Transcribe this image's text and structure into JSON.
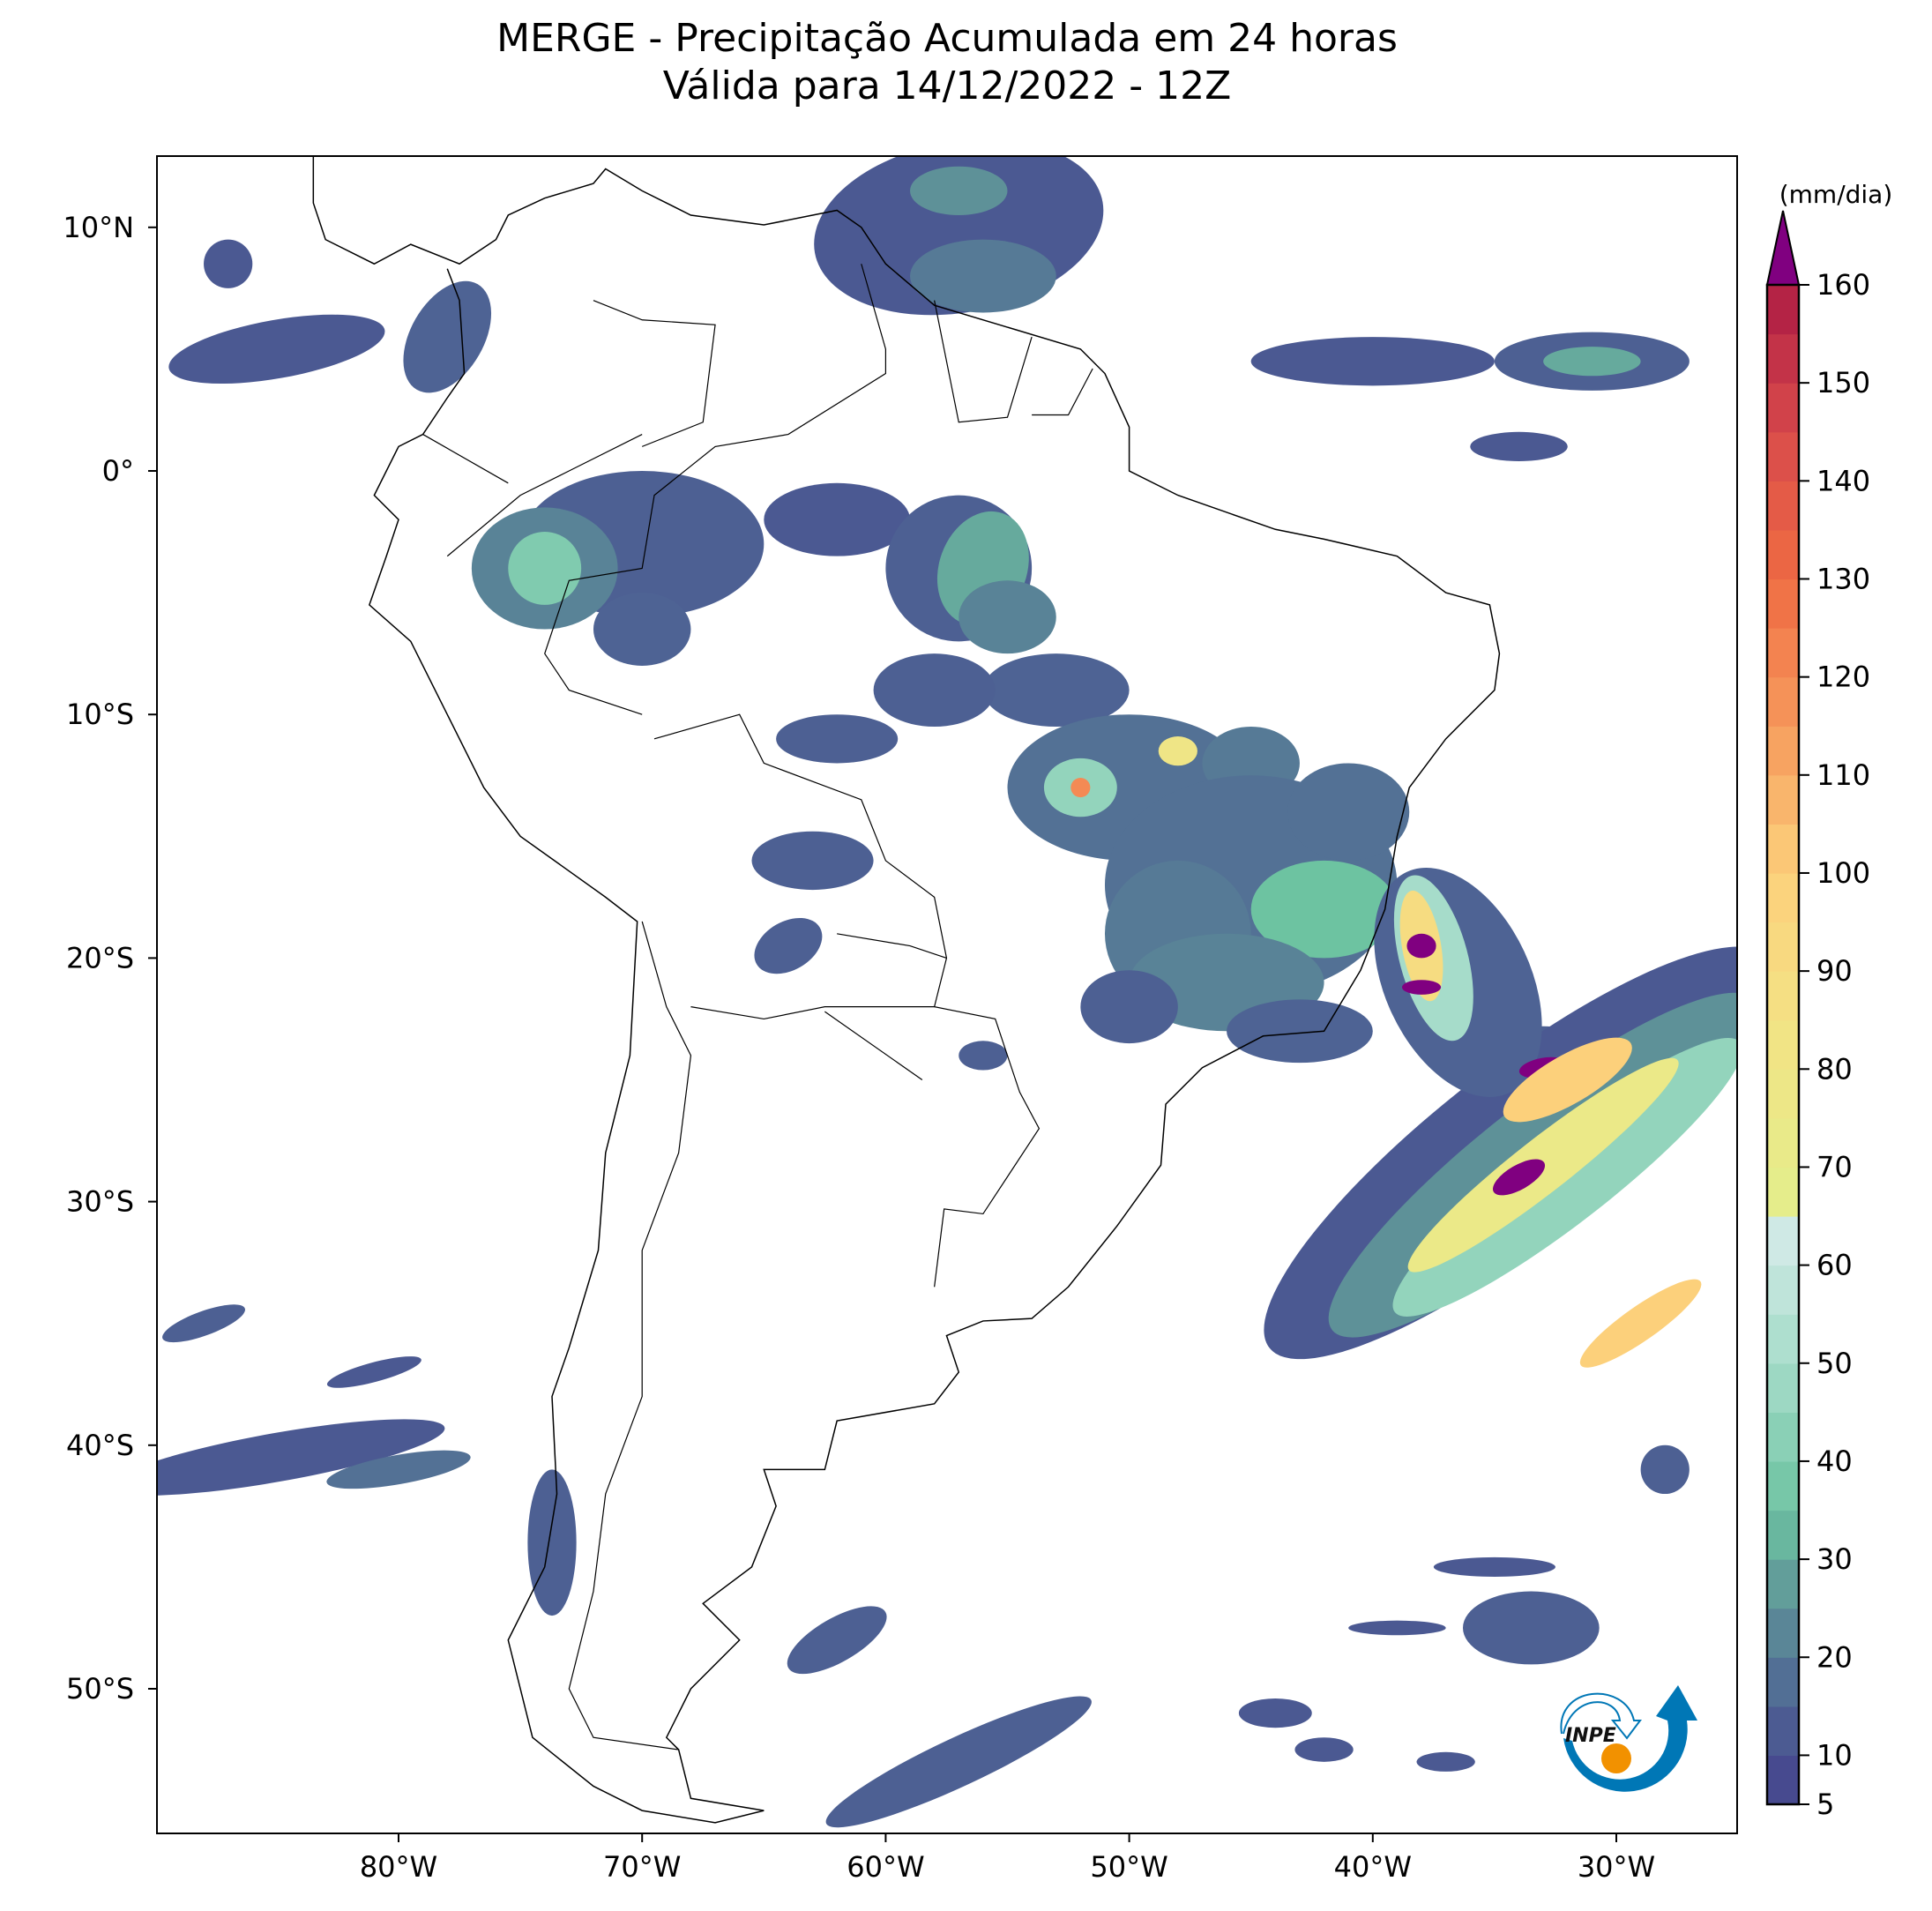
{
  "title": {
    "line1": "MERGE - Precipitação Acumulada em 24 horas",
    "line2": "Válida para 14/12/2022 - 12Z"
  },
  "chart_data": {
    "type": "map",
    "variable": "24h accumulated precipitation",
    "extent": {
      "lon": [
        -90,
        -25
      ],
      "lat": [
        -56,
        13
      ]
    },
    "xticks": [
      {
        "value": -80,
        "label": "80°W"
      },
      {
        "value": -70,
        "label": "70°W"
      },
      {
        "value": -60,
        "label": "60°W"
      },
      {
        "value": -50,
        "label": "50°W"
      },
      {
        "value": -40,
        "label": "40°W"
      },
      {
        "value": -30,
        "label": "30°W"
      }
    ],
    "yticks": [
      {
        "value": 10,
        "label": "10°N"
      },
      {
        "value": 0,
        "label": "0°"
      },
      {
        "value": -10,
        "label": "10°S"
      },
      {
        "value": -20,
        "label": "20°S"
      },
      {
        "value": -30,
        "label": "30°S"
      },
      {
        "value": -40,
        "label": "40°S"
      },
      {
        "value": -50,
        "label": "50°S"
      }
    ],
    "colorbar": {
      "unit": "(mm/dia)",
      "min": 5,
      "max": 160,
      "step": 5,
      "extend": "max",
      "ticks": [
        "5",
        "10",
        "20",
        "30",
        "40",
        "50",
        "60",
        "70",
        "80",
        "90",
        "100",
        "110",
        "120",
        "130",
        "140",
        "150",
        "160"
      ],
      "anchors": [
        {
          "v": 5,
          "c": "#45418d"
        },
        {
          "v": 15,
          "c": "#4e6394"
        },
        {
          "v": 25,
          "c": "#5e9198"
        },
        {
          "v": 35,
          "c": "#6dc3a1"
        },
        {
          "v": 50,
          "c": "#a6dcca"
        },
        {
          "v": 65,
          "c": "#d7ebea"
        },
        {
          "v": 65.01,
          "c": "#e3ef8c"
        },
        {
          "v": 85,
          "c": "#f3e284"
        },
        {
          "v": 100,
          "c": "#fcd07b"
        },
        {
          "v": 115,
          "c": "#f69a5c"
        },
        {
          "v": 130,
          "c": "#ef6b43"
        },
        {
          "v": 145,
          "c": "#d84a4b"
        },
        {
          "v": 160,
          "c": "#ad1b44"
        }
      ],
      "over_color": "#800080"
    }
  },
  "logo": {
    "text": "INPE",
    "blue": "#0077b6",
    "orange": "#f29100"
  }
}
